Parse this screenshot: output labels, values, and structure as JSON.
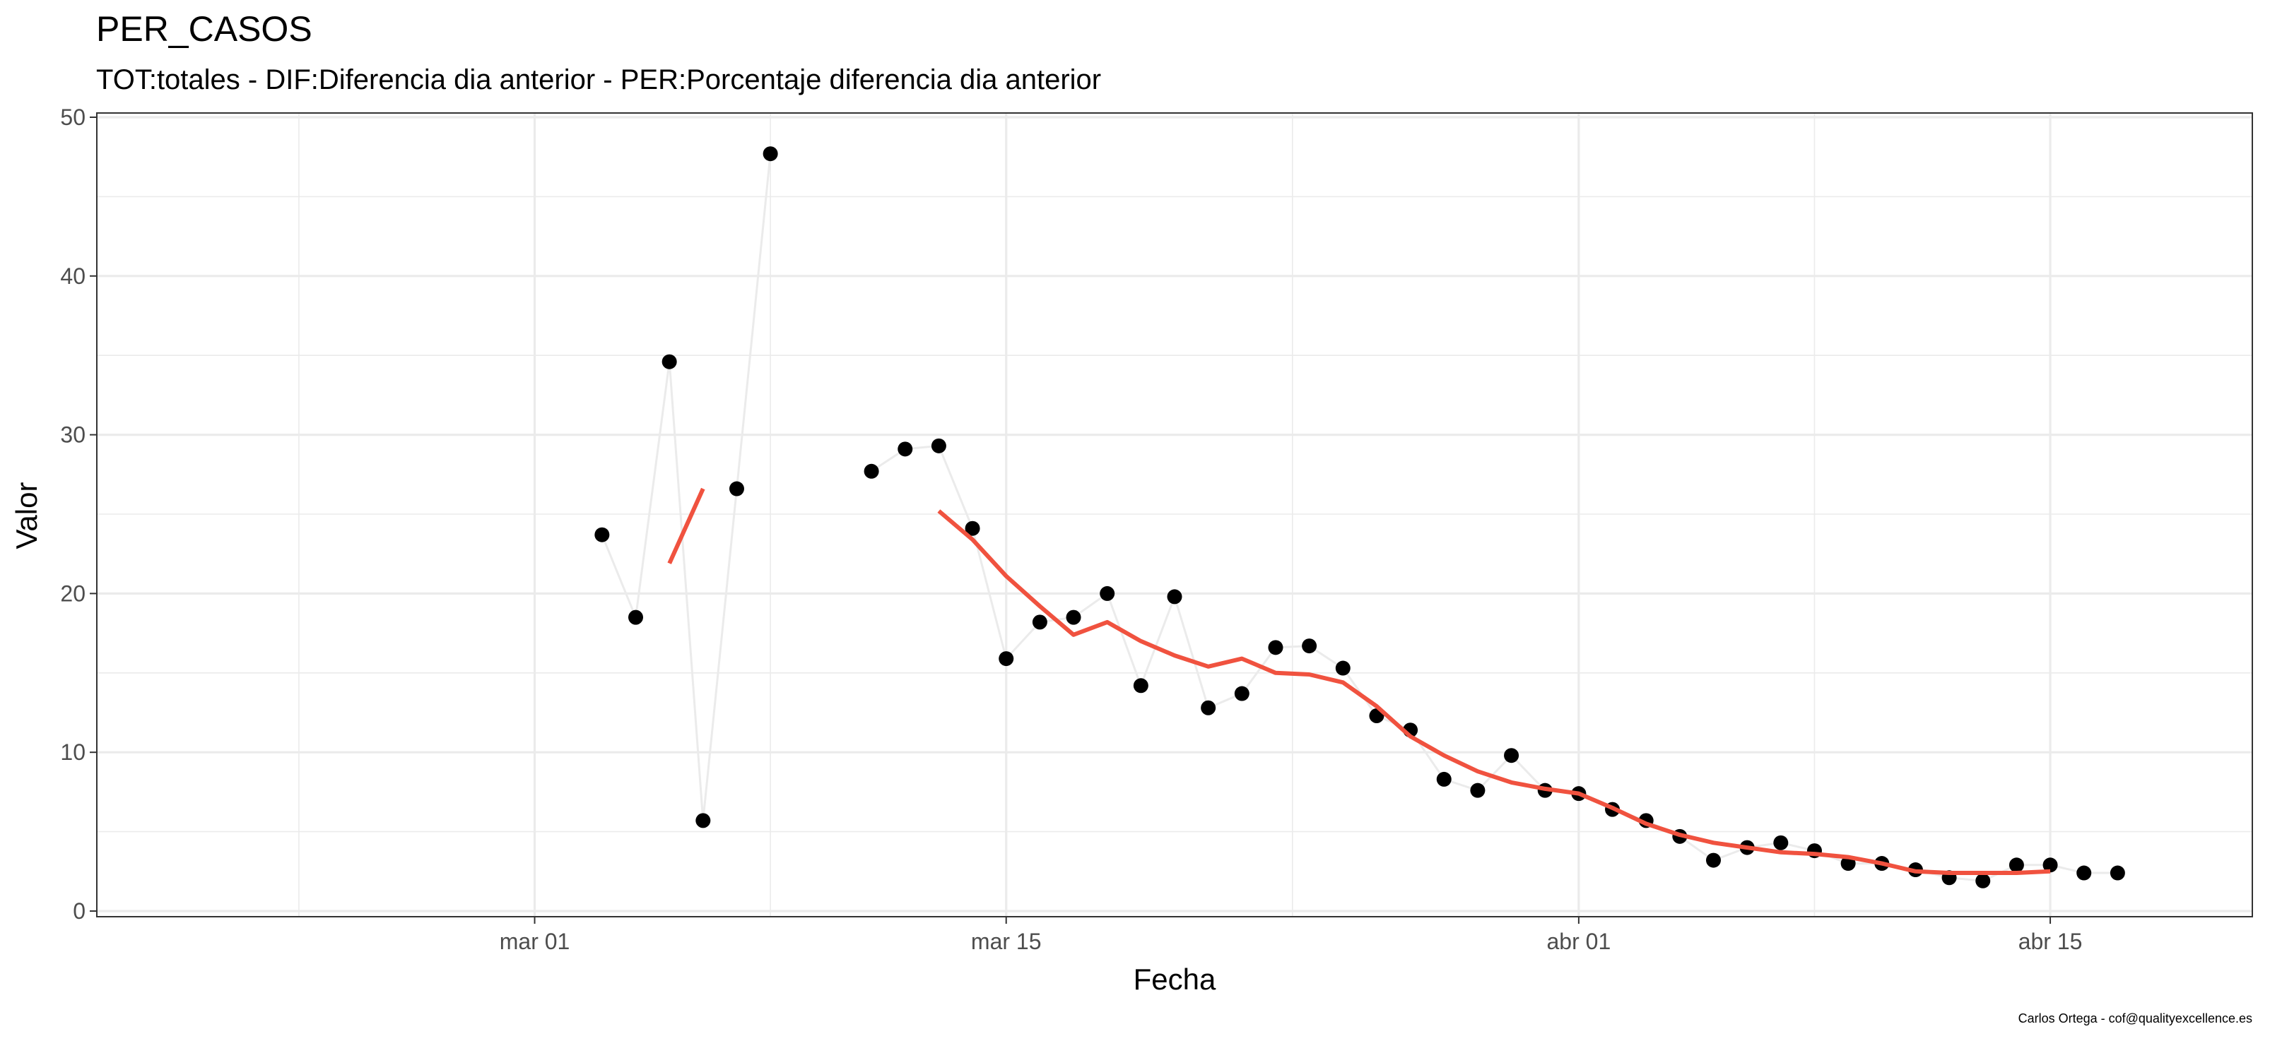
{
  "chart_data": {
    "type": "scatter",
    "title": "PER_CASOS",
    "subtitle": "TOT:totales - DIF:Diferencia dia anterior - PER:Porcentaje diferencia dia anterior",
    "xlabel": "Fecha",
    "ylabel": "Valor",
    "caption": "Carlos Ortega - cof@qualityexcellence.es",
    "x_range": [
      "2020-02-17",
      "2020-04-21"
    ],
    "ylim": [
      0,
      50
    ],
    "y_ticks": [
      0,
      10,
      20,
      30,
      40,
      50
    ],
    "x_ticks": [
      {
        "date": "2020-03-01",
        "label": "mar 01"
      },
      {
        "date": "2020-03-15",
        "label": "mar 15"
      },
      {
        "date": "2020-04-01",
        "label": "abr 01"
      },
      {
        "date": "2020-04-15",
        "label": "abr 15"
      }
    ],
    "grid": true,
    "colors": {
      "points": "#000000",
      "line": "#ebebeb",
      "trend": "#f0523f",
      "grid": "#ebebeb",
      "border": "#333333"
    },
    "series": [
      {
        "type": "points_line",
        "segments": [
          [
            {
              "x": "2020-03-03",
              "y": 23.7
            },
            {
              "x": "2020-03-04",
              "y": 18.5
            },
            {
              "x": "2020-03-05",
              "y": 34.6
            },
            {
              "x": "2020-03-06",
              "y": 5.7
            },
            {
              "x": "2020-03-07",
              "y": 26.6
            },
            {
              "x": "2020-03-08",
              "y": 47.7
            }
          ],
          [
            {
              "x": "2020-03-11",
              "y": 27.7
            },
            {
              "x": "2020-03-12",
              "y": 29.1
            },
            {
              "x": "2020-03-13",
              "y": 29.3
            },
            {
              "x": "2020-03-14",
              "y": 24.1
            },
            {
              "x": "2020-03-15",
              "y": 15.9
            },
            {
              "x": "2020-03-16",
              "y": 18.2
            },
            {
              "x": "2020-03-17",
              "y": 18.5
            },
            {
              "x": "2020-03-18",
              "y": 20.0
            },
            {
              "x": "2020-03-19",
              "y": 14.2
            },
            {
              "x": "2020-03-20",
              "y": 19.8
            },
            {
              "x": "2020-03-21",
              "y": 12.8
            },
            {
              "x": "2020-03-22",
              "y": 13.7
            },
            {
              "x": "2020-03-23",
              "y": 16.6
            },
            {
              "x": "2020-03-24",
              "y": 16.7
            },
            {
              "x": "2020-03-25",
              "y": 15.3
            },
            {
              "x": "2020-03-26",
              "y": 12.3
            },
            {
              "x": "2020-03-27",
              "y": 11.4
            },
            {
              "x": "2020-03-28",
              "y": 8.3
            },
            {
              "x": "2020-03-29",
              "y": 7.6
            },
            {
              "x": "2020-03-30",
              "y": 9.8
            },
            {
              "x": "2020-03-31",
              "y": 7.6
            },
            {
              "x": "2020-04-01",
              "y": 7.4
            },
            {
              "x": "2020-04-02",
              "y": 6.4
            },
            {
              "x": "2020-04-03",
              "y": 5.7
            },
            {
              "x": "2020-04-04",
              "y": 4.7
            },
            {
              "x": "2020-04-05",
              "y": 3.2
            },
            {
              "x": "2020-04-06",
              "y": 4.0
            },
            {
              "x": "2020-04-07",
              "y": 4.3
            },
            {
              "x": "2020-04-08",
              "y": 3.8
            },
            {
              "x": "2020-04-09",
              "y": 3.0
            },
            {
              "x": "2020-04-10",
              "y": 3.0
            },
            {
              "x": "2020-04-11",
              "y": 2.6
            },
            {
              "x": "2020-04-12",
              "y": 2.1
            },
            {
              "x": "2020-04-13",
              "y": 1.9
            },
            {
              "x": "2020-04-14",
              "y": 2.9
            },
            {
              "x": "2020-04-15",
              "y": 2.9
            },
            {
              "x": "2020-04-16",
              "y": 2.4
            },
            {
              "x": "2020-04-17",
              "y": 2.4
            }
          ]
        ]
      },
      {
        "type": "trend_line",
        "segments": [
          [
            {
              "x": "2020-03-05",
              "y": 21.9
            },
            {
              "x": "2020-03-06",
              "y": 26.6
            }
          ],
          [
            {
              "x": "2020-03-13",
              "y": 25.2
            },
            {
              "x": "2020-03-14",
              "y": 23.4
            },
            {
              "x": "2020-03-15",
              "y": 21.1
            },
            {
              "x": "2020-03-16",
              "y": 19.2
            },
            {
              "x": "2020-03-17",
              "y": 17.4
            },
            {
              "x": "2020-03-18",
              "y": 18.2
            },
            {
              "x": "2020-03-19",
              "y": 17.0
            },
            {
              "x": "2020-03-20",
              "y": 16.1
            },
            {
              "x": "2020-03-21",
              "y": 15.4
            },
            {
              "x": "2020-03-22",
              "y": 15.9
            },
            {
              "x": "2020-03-23",
              "y": 15.0
            },
            {
              "x": "2020-03-24",
              "y": 14.9
            },
            {
              "x": "2020-03-25",
              "y": 14.4
            },
            {
              "x": "2020-03-26",
              "y": 12.9
            },
            {
              "x": "2020-03-27",
              "y": 11.0
            },
            {
              "x": "2020-03-28",
              "y": 9.8
            },
            {
              "x": "2020-03-29",
              "y": 8.8
            },
            {
              "x": "2020-03-30",
              "y": 8.1
            },
            {
              "x": "2020-03-31",
              "y": 7.7
            },
            {
              "x": "2020-04-01",
              "y": 7.4
            },
            {
              "x": "2020-04-02",
              "y": 6.5
            },
            {
              "x": "2020-04-03",
              "y": 5.5
            },
            {
              "x": "2020-04-04",
              "y": 4.8
            },
            {
              "x": "2020-04-05",
              "y": 4.3
            },
            {
              "x": "2020-04-06",
              "y": 4.0
            },
            {
              "x": "2020-04-07",
              "y": 3.7
            },
            {
              "x": "2020-04-08",
              "y": 3.6
            },
            {
              "x": "2020-04-09",
              "y": 3.4
            },
            {
              "x": "2020-04-10",
              "y": 3.0
            },
            {
              "x": "2020-04-11",
              "y": 2.5
            },
            {
              "x": "2020-04-12",
              "y": 2.4
            },
            {
              "x": "2020-04-13",
              "y": 2.4
            },
            {
              "x": "2020-04-14",
              "y": 2.4
            },
            {
              "x": "2020-04-15",
              "y": 2.5
            }
          ]
        ]
      }
    ]
  }
}
